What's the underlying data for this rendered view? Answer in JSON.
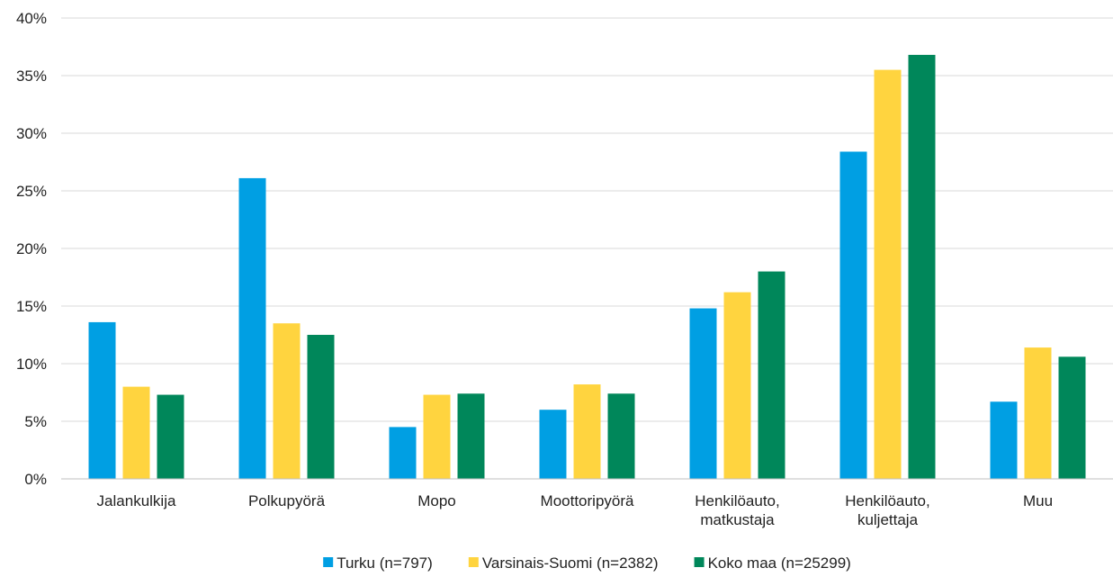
{
  "chart_data": {
    "type": "bar",
    "categories": [
      [
        "Jalankulkija"
      ],
      [
        "Polkupyörä"
      ],
      [
        "Mopo"
      ],
      [
        "Moottoripyörä"
      ],
      [
        "Henkilöauto,",
        "matkustaja"
      ],
      [
        "Henkilöauto,",
        "kuljettaja"
      ],
      [
        "Muu"
      ]
    ],
    "series": [
      {
        "name": "Turku (n=797)",
        "color": "#009fe3",
        "values": [
          13.6,
          26.1,
          4.5,
          6.0,
          14.8,
          28.4,
          6.7
        ]
      },
      {
        "name": "Varsinais-Suomi (n=2382)",
        "color": "#ffd43f",
        "values": [
          8.0,
          13.5,
          7.3,
          8.2,
          16.2,
          35.5,
          11.4
        ]
      },
      {
        "name": "Koko maa (n=25299)",
        "color": "#00875a",
        "values": [
          7.3,
          12.5,
          7.4,
          7.4,
          18.0,
          36.8,
          10.6
        ]
      }
    ],
    "ylim": [
      0,
      40
    ],
    "yticks": [
      0,
      5,
      10,
      15,
      20,
      25,
      30,
      35,
      40
    ],
    "ytick_labels": [
      "0%",
      "5%",
      "10%",
      "15%",
      "20%",
      "25%",
      "30%",
      "35%",
      "40%"
    ],
    "grid": true,
    "legend_position": "bottom-center",
    "title": "",
    "xlabel": "",
    "ylabel": ""
  }
}
